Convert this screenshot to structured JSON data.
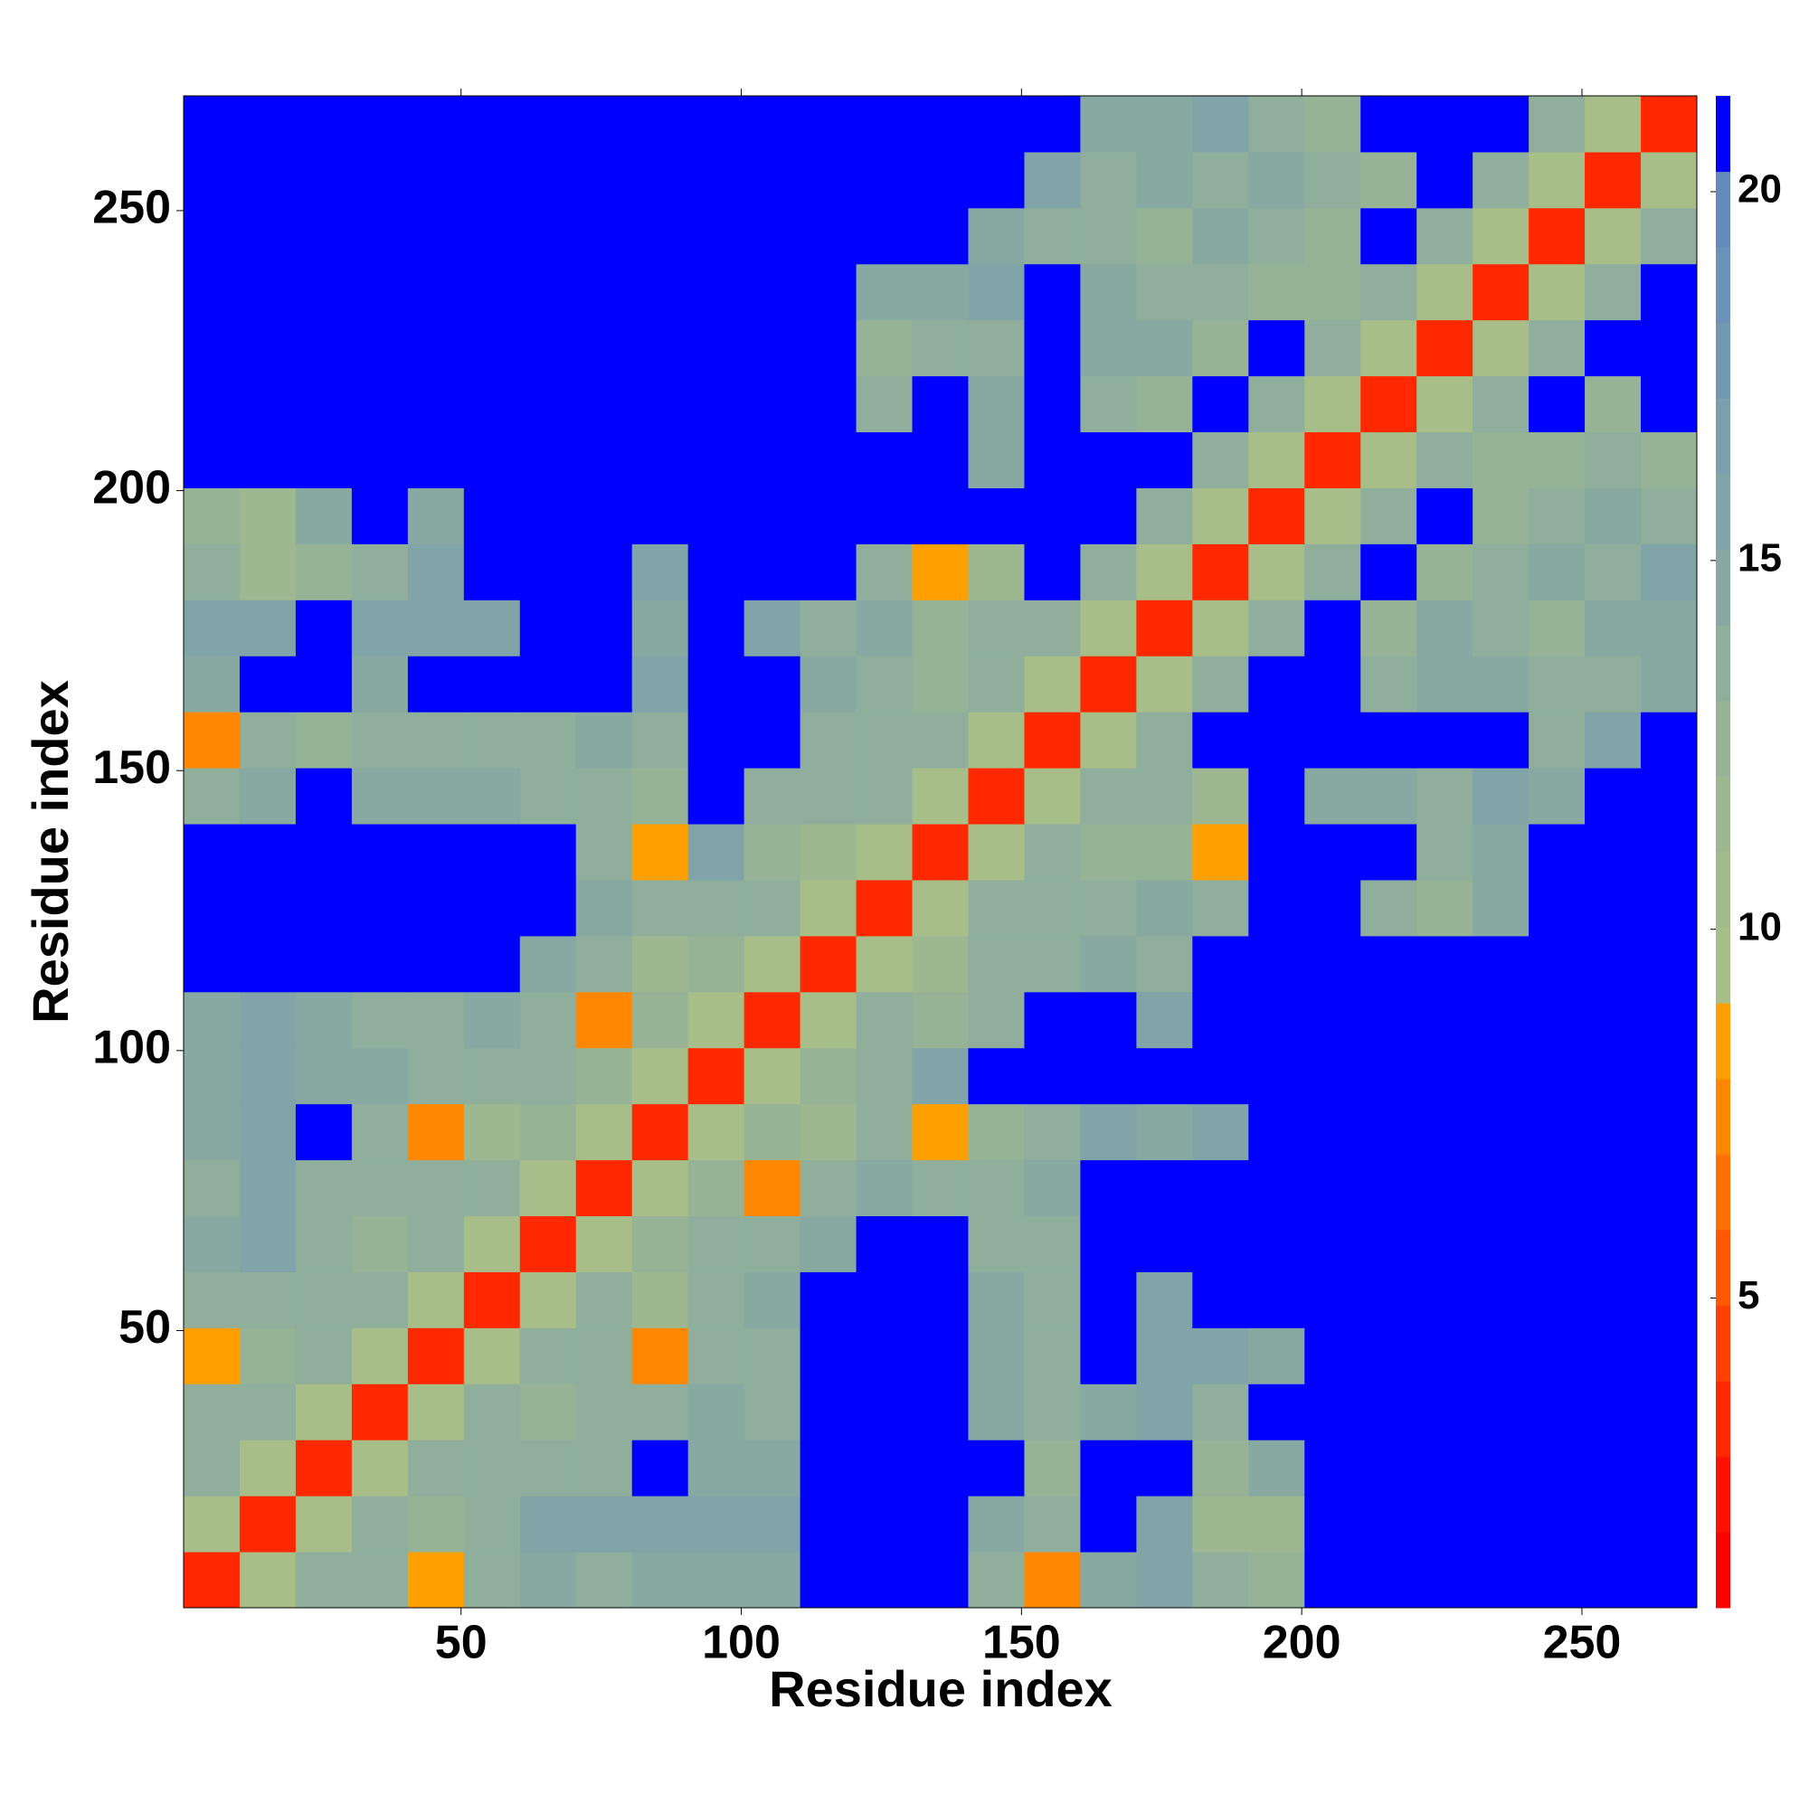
{
  "chart_data": {
    "type": "heatmap",
    "xlabel": "Residue index",
    "ylabel": "Residue index",
    "xlim": [
      0.5,
      270.5
    ],
    "ylim": [
      0.5,
      270.5
    ],
    "xticks": [
      50,
      100,
      150,
      200,
      250
    ],
    "yticks": [
      50,
      100,
      150,
      200,
      250
    ],
    "zlim": [
      0.8,
      21.3
    ],
    "zticks": [
      5,
      10,
      15,
      20
    ],
    "colors": [
      "#ff0000",
      "#ff1000",
      "#ff2800",
      "#ff4000",
      "#ff5800",
      "#ff7000",
      "#ff8800",
      "#ffa000",
      "#a7be88",
      "#a2bb8c",
      "#9db890",
      "#96b396",
      "#8fae9c",
      "#88a9a2",
      "#80a4a8",
      "#7a9fad",
      "#7399b2",
      "#6b92b7",
      "#638cbc",
      "#0000ff"
    ],
    "z": [
      [
        3,
        10,
        14,
        14,
        8,
        14,
        15,
        14,
        15,
        15,
        15,
        21,
        21,
        21,
        14,
        7,
        15,
        16,
        14,
        13,
        21,
        21,
        21,
        21,
        21,
        21,
        21
      ],
      [
        10,
        3,
        10,
        14,
        13,
        14,
        16,
        16,
        16,
        16,
        16,
        21,
        21,
        21,
        15,
        14,
        21,
        16,
        12,
        12,
        21,
        21,
        21,
        21,
        21,
        21,
        21
      ],
      [
        14,
        10,
        3,
        10,
        14,
        14,
        14,
        14,
        21,
        15,
        15,
        21,
        21,
        21,
        21,
        13,
        21,
        21,
        13,
        15,
        21,
        21,
        21,
        21,
        21,
        21,
        21
      ],
      [
        14,
        14,
        10,
        3,
        10,
        14,
        13,
        14,
        14,
        15,
        14,
        21,
        21,
        21,
        15,
        14,
        15,
        16,
        14,
        21,
        21,
        21,
        21,
        21,
        21,
        21,
        21
      ],
      [
        8,
        13,
        14,
        10,
        3,
        10,
        14,
        14,
        7,
        14,
        14,
        21,
        21,
        21,
        15,
        14,
        21,
        16,
        16,
        15,
        21,
        21,
        21,
        21,
        21,
        21,
        21
      ],
      [
        14,
        14,
        14,
        14,
        10,
        3,
        10,
        14,
        12,
        14,
        15,
        21,
        21,
        21,
        15,
        14,
        21,
        16,
        21,
        21,
        21,
        21,
        21,
        21,
        21,
        21,
        21
      ],
      [
        15,
        16,
        14,
        13,
        14,
        10,
        3,
        10,
        13,
        14,
        14,
        15,
        21,
        21,
        14,
        14,
        21,
        21,
        21,
        21,
        21,
        21,
        21,
        21,
        21,
        21,
        21
      ],
      [
        14,
        16,
        14,
        14,
        14,
        14,
        10,
        3,
        10,
        13,
        7,
        14,
        15,
        14,
        14,
        15,
        21,
        21,
        21,
        21,
        21,
        21,
        21,
        21,
        21,
        21,
        21
      ],
      [
        15,
        16,
        21,
        14,
        7,
        12,
        13,
        10,
        3,
        10,
        13,
        12,
        14,
        8,
        13,
        14,
        16,
        15,
        16,
        21,
        21,
        21,
        21,
        21,
        21,
        21,
        21
      ],
      [
        15,
        16,
        15,
        15,
        14,
        14,
        14,
        13,
        10,
        3,
        10,
        13,
        14,
        16,
        21,
        21,
        21,
        21,
        21,
        21,
        21,
        21,
        21,
        21,
        21,
        21,
        21
      ],
      [
        15,
        16,
        15,
        14,
        14,
        15,
        14,
        7,
        13,
        10,
        3,
        10,
        14,
        13,
        14,
        21,
        21,
        16,
        21,
        21,
        21,
        21,
        21,
        21,
        21,
        21,
        21
      ],
      [
        21,
        21,
        21,
        21,
        21,
        21,
        15,
        14,
        12,
        13,
        10,
        3,
        10,
        12,
        14,
        14,
        15,
        14,
        21,
        21,
        21,
        21,
        21,
        21,
        21,
        21,
        21
      ],
      [
        21,
        21,
        21,
        21,
        21,
        21,
        21,
        15,
        14,
        14,
        14,
        10,
        3,
        10,
        14,
        14,
        14,
        15,
        14,
        21,
        21,
        14,
        13,
        15,
        21,
        21,
        21
      ],
      [
        21,
        21,
        21,
        21,
        21,
        21,
        21,
        14,
        8,
        16,
        13,
        12,
        10,
        3,
        10,
        14,
        13,
        13,
        8,
        21,
        21,
        21,
        14,
        15,
        21,
        21,
        21
      ],
      [
        14,
        15,
        21,
        15,
        15,
        15,
        14,
        14,
        13,
        21,
        14,
        14,
        14,
        10,
        3,
        10,
        14,
        14,
        12,
        21,
        15,
        15,
        14,
        16,
        15,
        21,
        21
      ],
      [
        7,
        14,
        13,
        14,
        14,
        14,
        14,
        15,
        14,
        21,
        21,
        14,
        14,
        14,
        10,
        3,
        10,
        14,
        21,
        21,
        21,
        21,
        21,
        21,
        14,
        16,
        21
      ],
      [
        15,
        21,
        21,
        15,
        21,
        21,
        21,
        21,
        16,
        21,
        21,
        15,
        14,
        13,
        14,
        10,
        3,
        10,
        14,
        21,
        21,
        14,
        15,
        15,
        14,
        14,
        15
      ],
      [
        16,
        16,
        21,
        16,
        16,
        16,
        21,
        21,
        15,
        21,
        16,
        14,
        15,
        13,
        14,
        14,
        10,
        3,
        10,
        14,
        21,
        13,
        15,
        14,
        13,
        15,
        15
      ],
      [
        14,
        12,
        13,
        14,
        16,
        21,
        21,
        21,
        16,
        21,
        21,
        21,
        14,
        8,
        12,
        21,
        14,
        10,
        3,
        10,
        14,
        21,
        13,
        14,
        15,
        14,
        16
      ],
      [
        13,
        12,
        15,
        21,
        15,
        21,
        21,
        21,
        21,
        21,
        21,
        21,
        21,
        21,
        21,
        21,
        21,
        14,
        10,
        3,
        10,
        14,
        21,
        13,
        14,
        15,
        14
      ],
      [
        21,
        21,
        21,
        21,
        21,
        21,
        21,
        21,
        21,
        21,
        21,
        21,
        21,
        21,
        15,
        21,
        21,
        21,
        14,
        10,
        3,
        10,
        14,
        13,
        13,
        14,
        13
      ],
      [
        21,
        21,
        21,
        21,
        21,
        21,
        21,
        21,
        21,
        21,
        21,
        21,
        14,
        21,
        15,
        21,
        14,
        13,
        21,
        14,
        10,
        3,
        10,
        14,
        21,
        13,
        21
      ],
      [
        21,
        21,
        21,
        21,
        21,
        21,
        21,
        21,
        21,
        21,
        21,
        21,
        13,
        14,
        14,
        21,
        15,
        15,
        13,
        21,
        14,
        10,
        3,
        10,
        14,
        21,
        21
      ],
      [
        21,
        21,
        21,
        21,
        21,
        21,
        21,
        21,
        21,
        21,
        21,
        21,
        15,
        15,
        16,
        21,
        15,
        14,
        14,
        13,
        13,
        14,
        10,
        3,
        10,
        14,
        21
      ],
      [
        21,
        21,
        21,
        21,
        21,
        21,
        21,
        21,
        21,
        21,
        21,
        21,
        21,
        21,
        15,
        14,
        14,
        13,
        15,
        14,
        13,
        21,
        14,
        10,
        3,
        10,
        14
      ],
      [
        21,
        21,
        21,
        21,
        21,
        21,
        21,
        21,
        21,
        21,
        21,
        21,
        21,
        21,
        21,
        16,
        14,
        15,
        14,
        15,
        14,
        13,
        21,
        14,
        10,
        3,
        10
      ],
      [
        21,
        21,
        21,
        21,
        21,
        21,
        21,
        21,
        21,
        21,
        21,
        21,
        21,
        21,
        21,
        21,
        15,
        15,
        16,
        14,
        13,
        21,
        21,
        21,
        14,
        10,
        3
      ]
    ]
  }
}
